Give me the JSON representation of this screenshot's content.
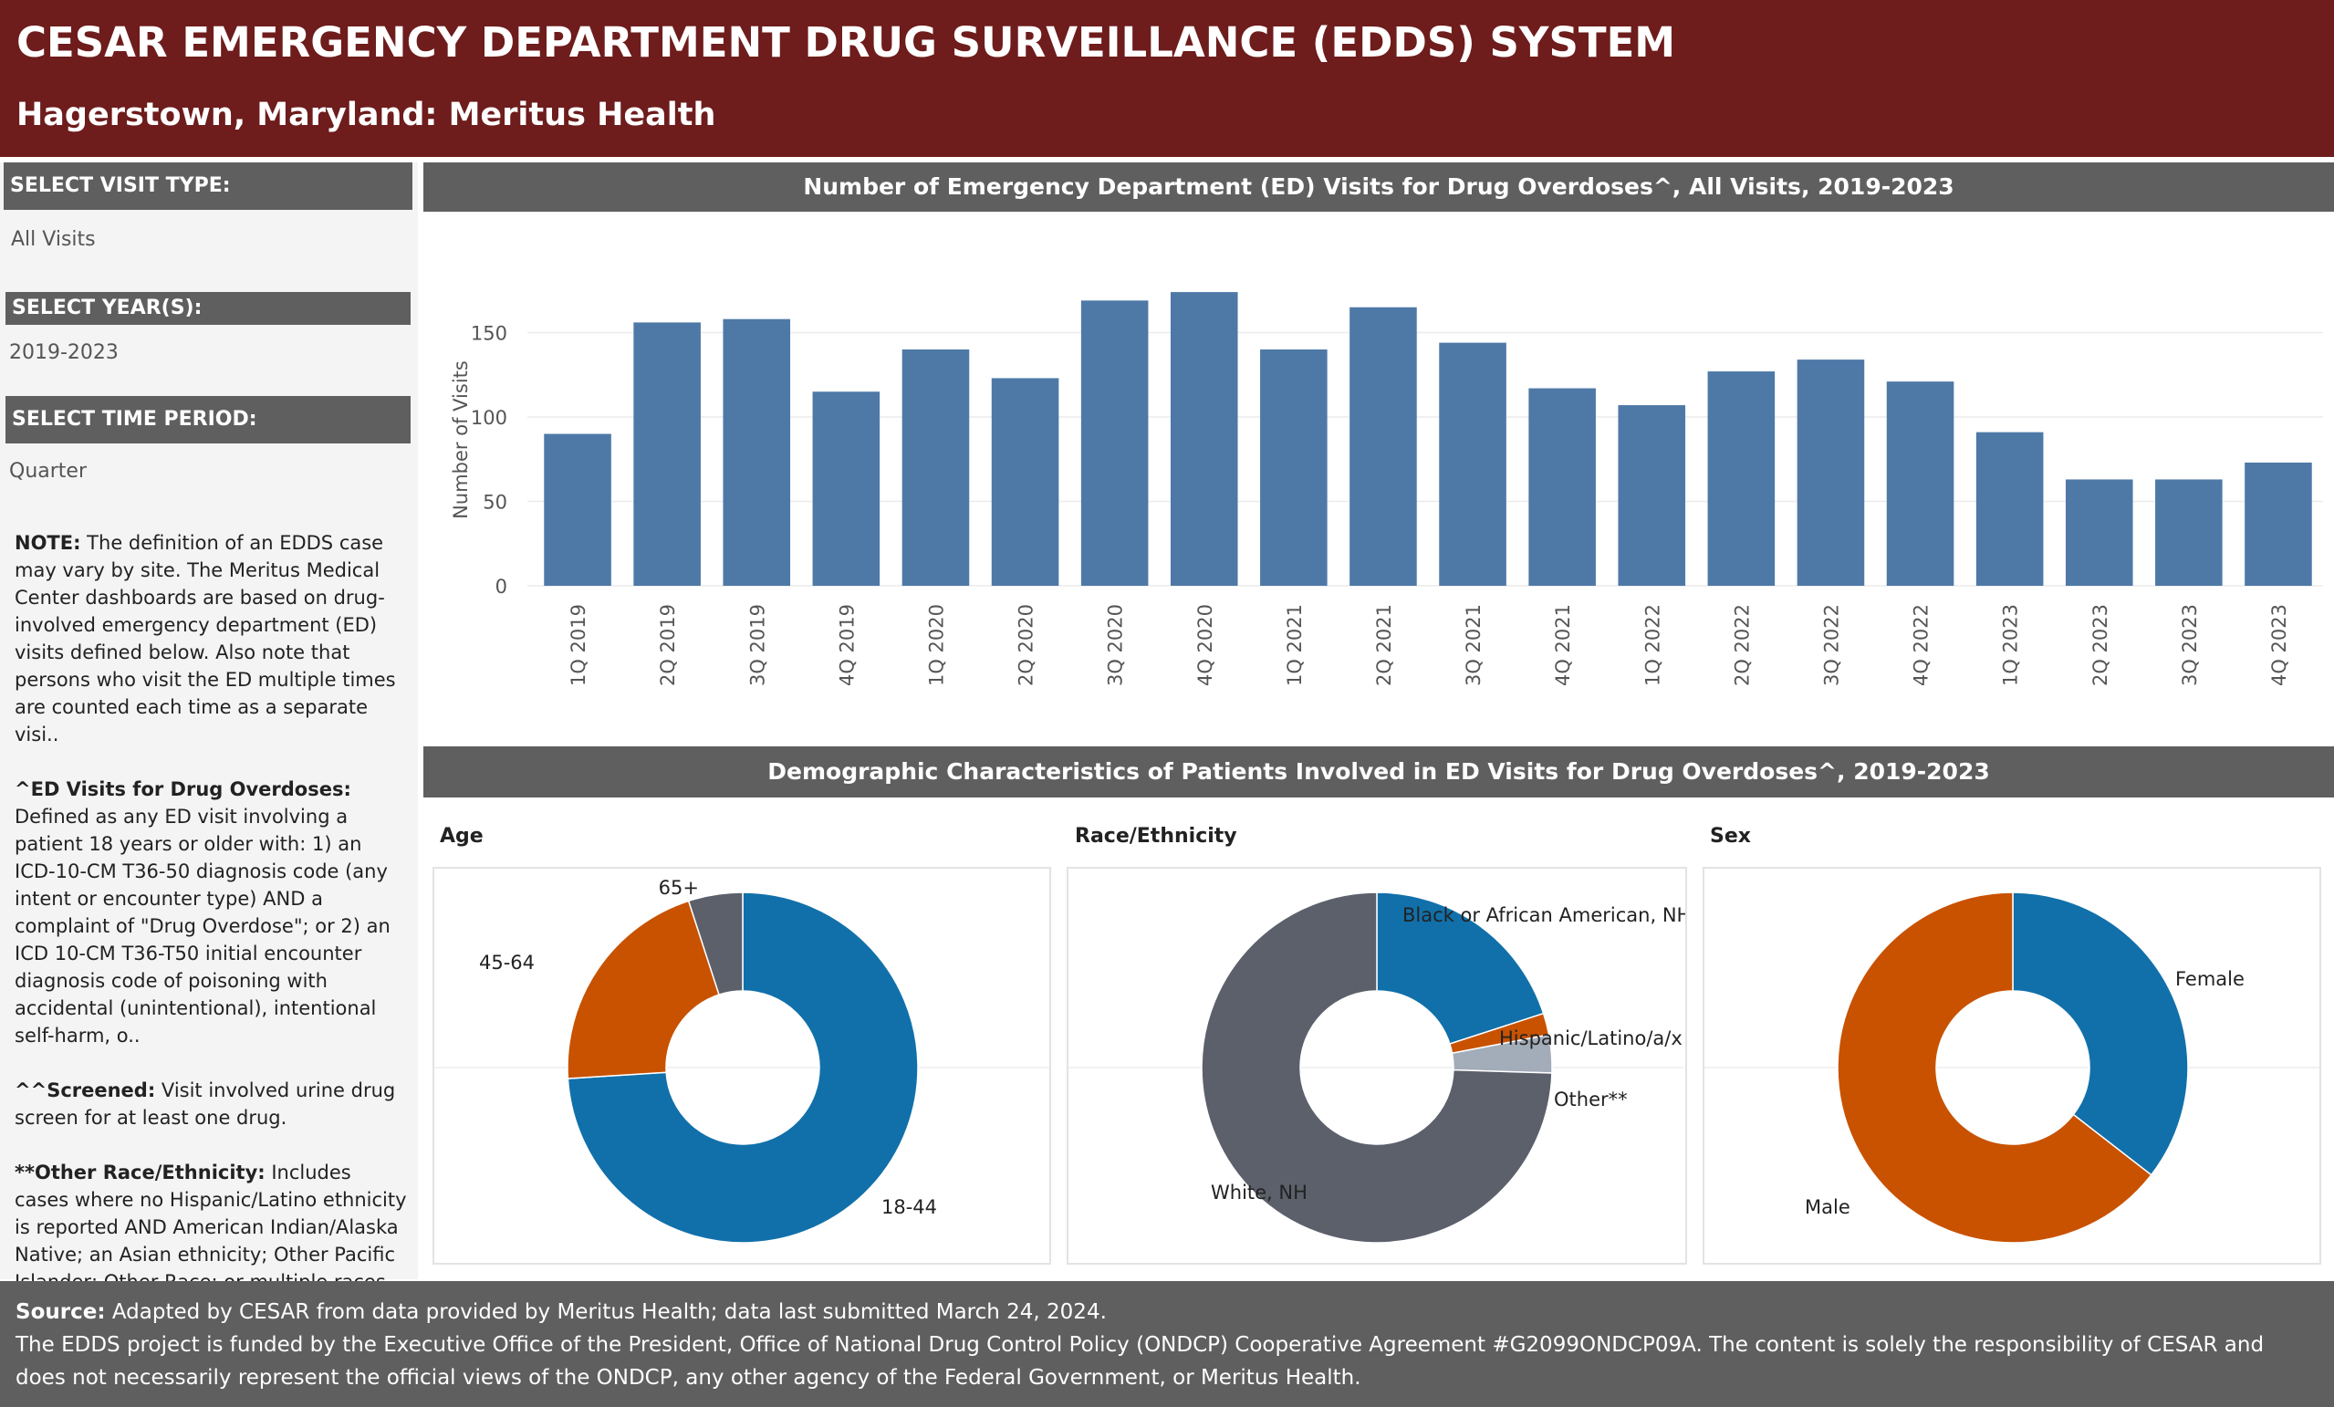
{
  "header": {
    "title": "CESAR EMERGENCY DEPARTMENT DRUG SURVEILLANCE (EDDS) SYSTEM",
    "subtitle": "Hagerstown, Maryland: Meritus Health"
  },
  "filters": {
    "visit_type": {
      "label": "SELECT VISIT TYPE:",
      "value": "All Visits"
    },
    "years": {
      "label": "SELECT YEAR(S):",
      "value": "2019-2023"
    },
    "time_period": {
      "label": "SELECT TIME PERIOD:",
      "value": "Quarter"
    }
  },
  "notes": [
    {
      "bold": "NOTE:",
      "text": " The definition of an EDDS case may vary by site. The Meritus Medical Center dashboards are based on drug-involved emergency department (ED) visits defined below. Also note that persons who visit the ED multiple times are counted each time as a separate visi.."
    },
    {
      "bold": "^ED Visits for Drug Overdoses:",
      "text": " Defined as any ED visit involving a patient 18 years or older with: 1) an ICD-10-CM T36-50 diagnosis code (any intent or encounter type) AND a complaint of \"Drug Overdose\"; or  2) an ICD 10-CM T36-T50 initial encounter diagnosis code of poisoning with accidental (unintentional), intentional self-harm, o.."
    },
    {
      "bold": "^^Screened:",
      "text": " Visit involved urine drug screen for at least one drug."
    },
    {
      "bold": "**Other Race/Ethnicity:",
      "text": " Includes cases where no Hispanic/Latino ethnicity is reported AND American Indian/Alaska Native; an Asian ethnicity; Other Pacific Islander; Other Race; or multiple races are reported."
    }
  ],
  "bar_panel": {
    "title": "Number of Emergency Department (ED) Visits for Drug Overdoses^, All Visits, 2019-2023"
  },
  "demo_panel": {
    "title": "Demographic Characteristics of Patients Involved in ED Visits for Drug Overdoses^, 2019-2023"
  },
  "colors": {
    "bar": "#4e79a7",
    "blue": "#1170aa",
    "orange": "#c85200",
    "gray": "#5b606b",
    "light_gray": "#a3acb9"
  },
  "chart_data": [
    {
      "type": "bar",
      "title": "Number of Emergency Department (ED) Visits for Drug Overdoses^, All Visits, 2019-2023",
      "ylabel": "Number of Visits",
      "xlabel": "",
      "ylim": [
        0,
        180
      ],
      "yticks": [
        0,
        50,
        100,
        150
      ],
      "grid": true,
      "categories": [
        "1Q 2019",
        "2Q 2019",
        "3Q 2019",
        "4Q 2019",
        "1Q 2020",
        "2Q 2020",
        "3Q 2020",
        "4Q 2020",
        "1Q 2021",
        "2Q 2021",
        "3Q 2021",
        "4Q 2021",
        "1Q 2022",
        "2Q 2022",
        "3Q 2022",
        "4Q 2022",
        "1Q 2023",
        "2Q 2023",
        "3Q 2023",
        "4Q 2023"
      ],
      "values": [
        90,
        156,
        158,
        115,
        140,
        123,
        169,
        174,
        140,
        165,
        144,
        117,
        107,
        127,
        134,
        121,
        91,
        63,
        63,
        73
      ]
    },
    {
      "type": "pie",
      "title": "Age",
      "labels": [
        "18-44",
        "45-64",
        "65+"
      ],
      "values": [
        74,
        21,
        5
      ],
      "colors": [
        "#1170aa",
        "#c85200",
        "#5b606b"
      ]
    },
    {
      "type": "pie",
      "title": "Race/Ethnicity",
      "labels": [
        "Black or African American, NH",
        "Hispanic/Latino/a/x",
        "Other**",
        "White, NH"
      ],
      "values": [
        20,
        2,
        3.5,
        74.5
      ],
      "colors": [
        "#1170aa",
        "#c85200",
        "#a3acb9",
        "#5b606b"
      ]
    },
    {
      "type": "pie",
      "title": "Sex",
      "labels": [
        "Female",
        "Male"
      ],
      "values": [
        35.5,
        64.5
      ],
      "colors": [
        "#1170aa",
        "#c85200"
      ]
    }
  ],
  "footer": {
    "source_bold": "Source:",
    "source_text": " Adapted by CESAR from data provided by Meritus Health; data last submitted March 24, 2024.",
    "funding": "The EDDS project is funded by the Executive Office of the President, Office of National Drug Control Policy (ONDCP) Cooperative Agreement #G2099ONDCP09A. The content is solely the responsibility of CESAR and does not necessarily represent the official views of the ONDCP, any other agency of the Federal Government, or Meritus Health."
  }
}
